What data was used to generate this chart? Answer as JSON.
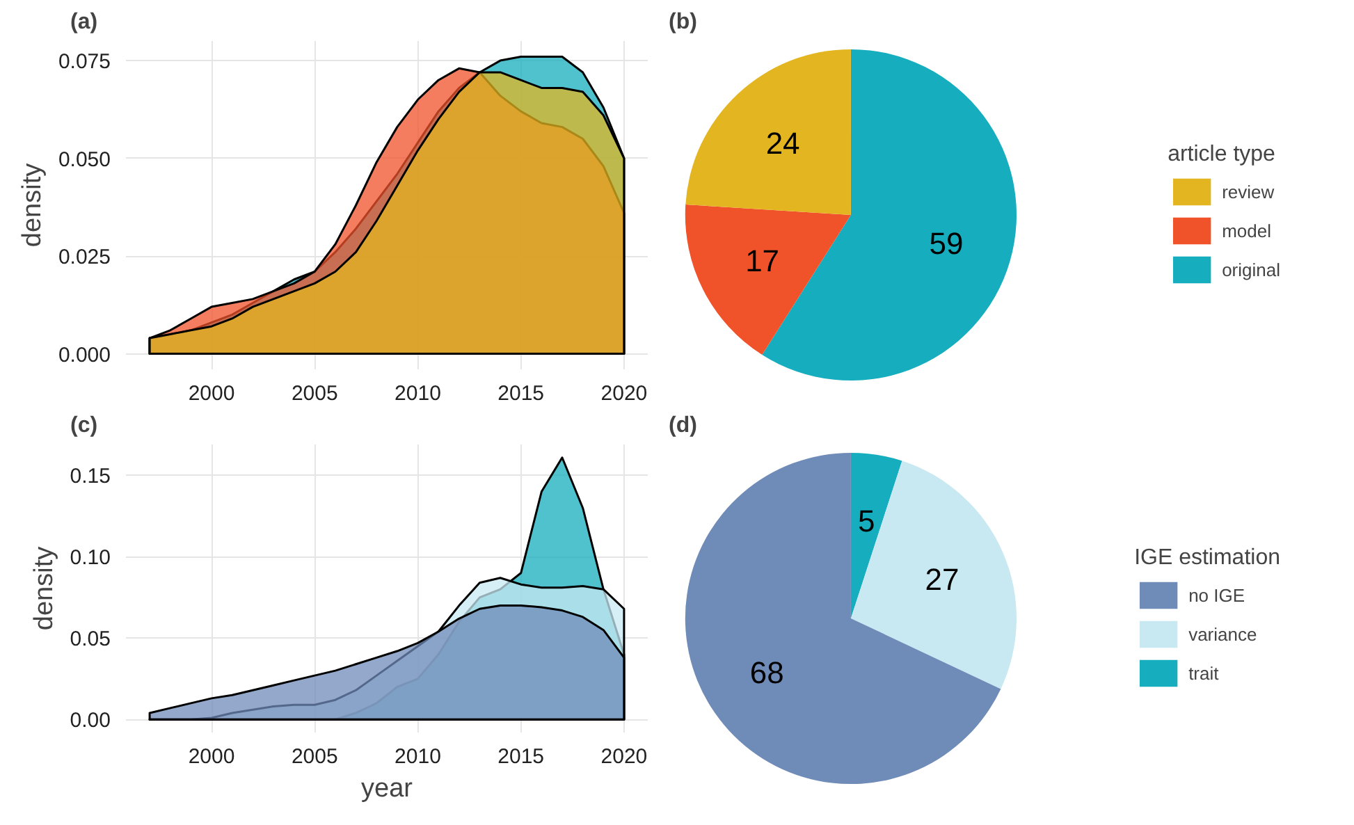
{
  "chart_data": [
    {
      "type": "area",
      "title": "(a)",
      "ylabel": "density",
      "x": [
        1997,
        1998,
        1999,
        2000,
        2001,
        2002,
        2003,
        2004,
        2005,
        2006,
        2007,
        2008,
        2009,
        2010,
        2011,
        2012,
        2013,
        2014,
        2015,
        2016,
        2017,
        2018,
        2019,
        2020
      ],
      "series": [
        {
          "color": "#16adbe",
          "values": [
            0.004,
            0.005,
            0.006,
            0.008,
            0.01,
            0.013,
            0.016,
            0.019,
            0.021,
            0.026,
            0.032,
            0.039,
            0.046,
            0.054,
            0.062,
            0.068,
            0.072,
            0.075,
            0.076,
            0.076,
            0.076,
            0.072,
            0.063,
            0.05
          ]
        },
        {
          "color": "#f0522a",
          "values": [
            0.004,
            0.006,
            0.009,
            0.012,
            0.013,
            0.014,
            0.016,
            0.018,
            0.021,
            0.028,
            0.038,
            0.049,
            0.058,
            0.065,
            0.07,
            0.073,
            0.072,
            0.066,
            0.062,
            0.059,
            0.058,
            0.055,
            0.048,
            0.036
          ]
        },
        {
          "color": "#e3b520",
          "values": [
            0.004,
            0.005,
            0.006,
            0.007,
            0.009,
            0.012,
            0.014,
            0.016,
            0.018,
            0.021,
            0.026,
            0.034,
            0.043,
            0.052,
            0.06,
            0.067,
            0.072,
            0.072,
            0.07,
            0.068,
            0.068,
            0.067,
            0.061,
            0.05
          ]
        }
      ],
      "xlim": [
        1995.85,
        2021.15
      ],
      "ylim": [
        -0.004,
        0.08
      ],
      "xticks": [
        2000,
        2005,
        2010,
        2015,
        2020
      ],
      "yticks": [
        {
          "value": 0,
          "label": "0.000"
        },
        {
          "value": 0.025,
          "label": "0.025"
        },
        {
          "value": 0.05,
          "label": "0.050"
        },
        {
          "value": 0.075,
          "label": "0.075"
        }
      ],
      "grid": true
    },
    {
      "type": "pie",
      "title": "(b)",
      "legend_title": "article type",
      "categories": [
        "review",
        "model",
        "original"
      ],
      "values": [
        24,
        17,
        59
      ],
      "colors": [
        "#e3b520",
        "#f0522a",
        "#16adbe"
      ],
      "data_labels": true,
      "legend": "right"
    },
    {
      "type": "area",
      "title": "(c)",
      "xlabel": "year",
      "ylabel": "density",
      "x": [
        1997,
        1998,
        1999,
        2000,
        2001,
        2002,
        2003,
        2004,
        2005,
        2006,
        2007,
        2008,
        2009,
        2010,
        2011,
        2012,
        2013,
        2014,
        2015,
        2016,
        2017,
        2018,
        2019,
        2020
      ],
      "series": [
        {
          "color": "#16adbe",
          "values": [
            0,
            0,
            0,
            0,
            0,
            0,
            0,
            0,
            0,
            0,
            0.004,
            0.01,
            0.02,
            0.025,
            0.04,
            0.06,
            0.075,
            0.08,
            0.09,
            0.14,
            0.161,
            0.13,
            0.08,
            0.04
          ]
        },
        {
          "color": "#c8e8f2",
          "values": [
            0,
            0,
            0,
            0.001,
            0.004,
            0.006,
            0.008,
            0.009,
            0.009,
            0.012,
            0.018,
            0.027,
            0.036,
            0.045,
            0.054,
            0.07,
            0.084,
            0.087,
            0.083,
            0.081,
            0.081,
            0.082,
            0.08,
            0.068
          ]
        },
        {
          "color": "#6f8bb8",
          "values": [
            0.004,
            0.007,
            0.01,
            0.013,
            0.015,
            0.018,
            0.021,
            0.024,
            0.027,
            0.03,
            0.034,
            0.038,
            0.042,
            0.047,
            0.054,
            0.062,
            0.068,
            0.07,
            0.07,
            0.069,
            0.067,
            0.063,
            0.055,
            0.038
          ]
        }
      ],
      "xlim": [
        1995.85,
        2021.15
      ],
      "ylim": [
        -0.008,
        0.169
      ],
      "xticks": [
        2000,
        2005,
        2010,
        2015,
        2020
      ],
      "yticks": [
        {
          "value": 0,
          "label": "0.00"
        },
        {
          "value": 0.05,
          "label": "0.05"
        },
        {
          "value": 0.1,
          "label": "0.10"
        },
        {
          "value": 0.15,
          "label": "0.15"
        }
      ],
      "grid": true
    },
    {
      "type": "pie",
      "title": "(d)",
      "legend_title": "IGE estimation",
      "categories": [
        "no IGE",
        "variance",
        "trait"
      ],
      "values": [
        68,
        27,
        5
      ],
      "colors": [
        "#6f8bb8",
        "#c8e8f2",
        "#16adbe"
      ],
      "data_labels": true,
      "legend": "right"
    }
  ]
}
